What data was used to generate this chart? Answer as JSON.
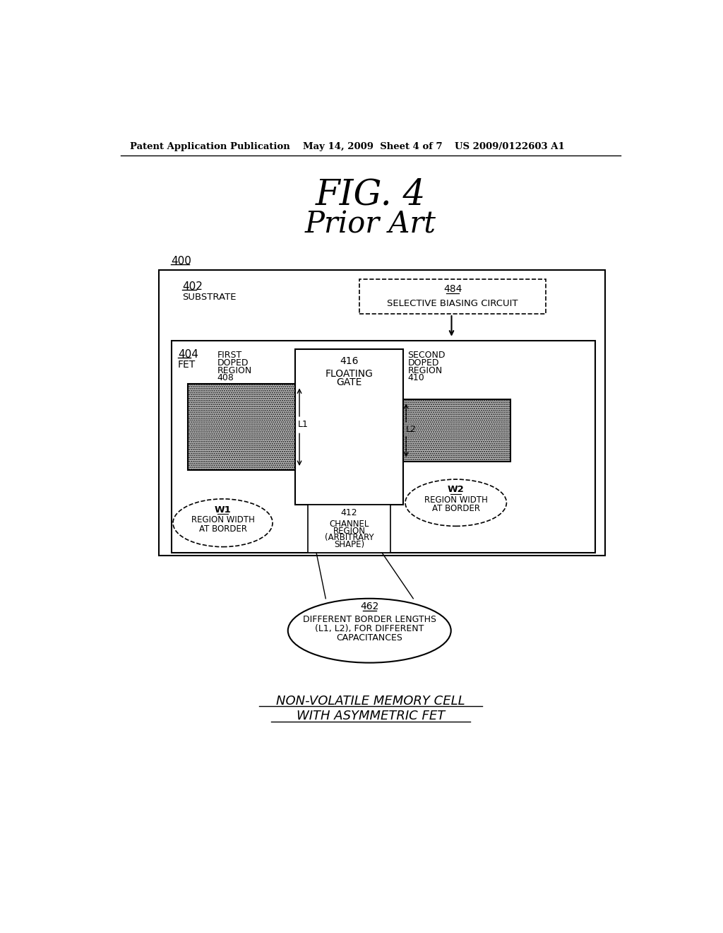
{
  "bg_color": "#ffffff",
  "header_left": "Patent Application Publication",
  "header_mid": "May 14, 2009  Sheet 4 of 7",
  "header_right": "US 2009/0122603 A1",
  "fig_title": "FIG. 4",
  "fig_subtitle": "Prior Art",
  "label_400": "400",
  "label_402": "402",
  "label_402b": "SUBSTRATE",
  "label_484": "484",
  "label_484b": "SELECTIVE BIASING CIRCUIT",
  "label_404": "404",
  "label_404b": "FET",
  "label_408_lines": [
    "FIRST",
    "DOPED",
    "REGION",
    "408"
  ],
  "label_410_lines": [
    "SECOND",
    "DOPED",
    "REGION",
    "410"
  ],
  "label_416_lines": [
    "416",
    "FLOATING",
    "GATE"
  ],
  "label_412_lines": [
    "412",
    "CHANNEL",
    "REGION",
    "(ARBITRARY",
    "SHAPE)"
  ],
  "label_L1": "L1",
  "label_L2": "L2",
  "label_W1_lines": [
    "W1",
    "REGION WIDTH",
    "AT BORDER"
  ],
  "label_W2_lines": [
    "W2",
    "REGION WIDTH",
    "AT BORDER"
  ],
  "label_462": "462",
  "label_462_lines": [
    "DIFFERENT BORDER LENGTHS",
    "(L1, L2), FOR DIFFERENT",
    "CAPACITANCES"
  ],
  "bottom_text1": "NON-VOLATILE MEMORY CELL",
  "bottom_text2": "WITH ASYMMETRIC FET"
}
